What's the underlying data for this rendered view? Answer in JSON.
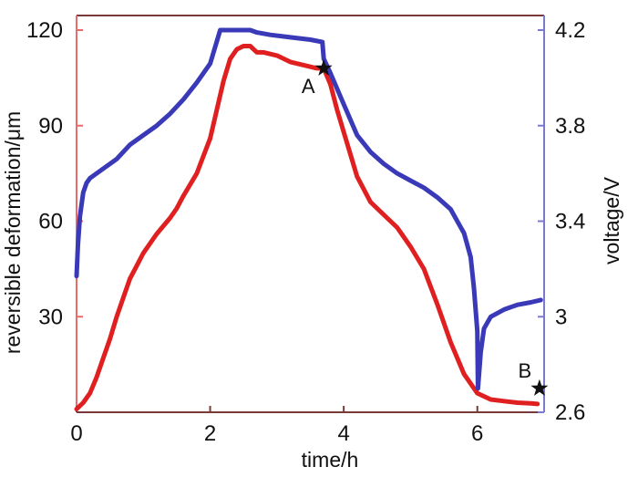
{
  "chart_data": {
    "type": "line",
    "title": "",
    "xlabel": "time/h",
    "ylabel_left": "reversible deformation/μm",
    "ylabel_right": "voltage/V",
    "xlim": [
      0,
      7
    ],
    "ylim_left": [
      0,
      120
    ],
    "ylim_right": [
      2.6,
      4.2
    ],
    "x_ticks": [
      {
        "value": 0,
        "label": "0"
      },
      {
        "value": 2,
        "label": "2"
      },
      {
        "value": 4,
        "label": "4"
      },
      {
        "value": 6,
        "label": "6"
      }
    ],
    "y_left_ticks": [
      {
        "value": 30,
        "label": "30"
      },
      {
        "value": 60,
        "label": "60"
      },
      {
        "value": 90,
        "label": "90"
      },
      {
        "value": 120,
        "label": "120"
      }
    ],
    "y_right_ticks": [
      {
        "value": 2.6,
        "label": "2.6"
      },
      {
        "value": 3.0,
        "label": "3"
      },
      {
        "value": 3.4,
        "label": "3.4"
      },
      {
        "value": 3.8,
        "label": "3.8"
      },
      {
        "value": 4.2,
        "label": "4.2"
      }
    ],
    "series": [
      {
        "name": "reversible deformation",
        "axis": "left",
        "color": "#e02020",
        "x": [
          0.0,
          0.1,
          0.2,
          0.3,
          0.4,
          0.5,
          0.6,
          0.7,
          0.8,
          0.9,
          1.0,
          1.2,
          1.4,
          1.5,
          1.6,
          1.8,
          2.0,
          2.1,
          2.2,
          2.3,
          2.4,
          2.5,
          2.6,
          2.7,
          2.8,
          3.0,
          3.2,
          3.4,
          3.6,
          3.7,
          3.8,
          3.9,
          4.0,
          4.2,
          4.4,
          4.6,
          4.8,
          5.0,
          5.2,
          5.4,
          5.6,
          5.8,
          6.0,
          6.2,
          6.4,
          6.6,
          6.8,
          6.9
        ],
        "values": [
          1,
          3,
          6,
          11,
          17,
          23,
          30,
          36,
          42,
          46,
          50,
          56,
          61,
          64,
          68,
          75,
          86,
          95,
          104,
          111,
          114,
          115,
          115,
          113,
          113,
          112,
          110,
          109,
          108,
          108,
          103,
          95,
          88,
          74,
          66,
          62,
          58,
          52,
          45,
          34,
          22,
          12,
          6,
          4,
          3.5,
          3,
          2.8,
          2.6
        ]
      },
      {
        "name": "voltage",
        "axis": "right",
        "color": "#3a3ab8",
        "x": [
          0.0,
          0.02,
          0.05,
          0.1,
          0.15,
          0.2,
          0.3,
          0.4,
          0.6,
          0.8,
          1.0,
          1.2,
          1.4,
          1.6,
          1.8,
          2.0,
          2.15,
          2.4,
          2.6,
          2.7,
          2.9,
          3.2,
          3.5,
          3.68,
          3.7,
          3.8,
          4.0,
          4.2,
          4.4,
          4.6,
          4.8,
          5.0,
          5.2,
          5.4,
          5.6,
          5.8,
          5.9,
          5.95,
          6.0,
          6.01,
          6.05,
          6.1,
          6.2,
          6.4,
          6.6,
          6.8,
          6.95
        ],
        "values": [
          3.17,
          3.3,
          3.42,
          3.52,
          3.56,
          3.58,
          3.6,
          3.62,
          3.66,
          3.72,
          3.76,
          3.8,
          3.85,
          3.91,
          3.98,
          4.06,
          4.2,
          4.2,
          4.2,
          4.19,
          4.18,
          4.17,
          4.16,
          4.15,
          4.08,
          4.02,
          3.89,
          3.76,
          3.69,
          3.64,
          3.6,
          3.57,
          3.54,
          3.5,
          3.45,
          3.35,
          3.25,
          3.12,
          2.94,
          2.7,
          2.85,
          2.95,
          3.0,
          3.03,
          3.05,
          3.06,
          3.07
        ]
      }
    ],
    "annotations": [
      {
        "label": "A",
        "x": 3.7,
        "y": 108,
        "axis": "left",
        "marker": "star"
      },
      {
        "label": "B",
        "x": 6.93,
        "y": 2.7,
        "axis": "right",
        "marker": "star"
      }
    ]
  }
}
